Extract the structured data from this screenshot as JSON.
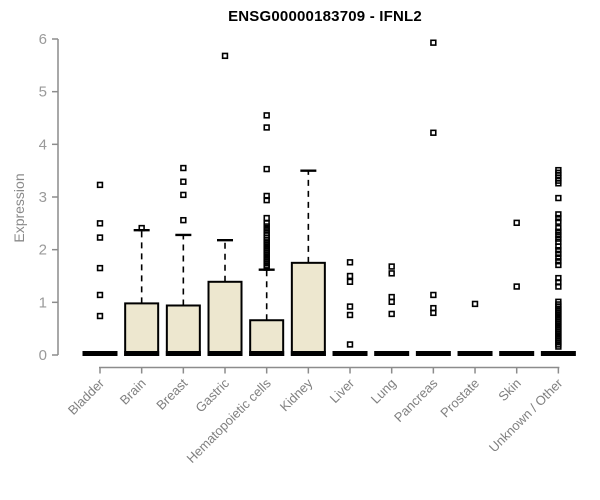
{
  "title": "ENSG00000183709 - IFNL2",
  "chart_data": {
    "type": "box",
    "title": "ENSG00000183709 - IFNL2",
    "ylabel": "Expression",
    "xlabel": "",
    "ylim": [
      0,
      6
    ],
    "y_ticks": [
      0,
      1,
      2,
      3,
      4,
      5,
      6
    ],
    "legend": "none",
    "grid": false,
    "colors": {
      "box_fill": "#EDE7CF",
      "box_border": "#000000",
      "median": "#000000",
      "whisker": "#000000",
      "outlier": "#000000",
      "axis": "#8c8c8c",
      "tick_label": "#9a9a9a",
      "category_label": "#808080",
      "title": "#000000"
    },
    "categories": [
      {
        "label": "Bladder",
        "median": 0,
        "q1": 0,
        "q3": 0,
        "whisker_low": 0,
        "whisker_high": 0,
        "outliers": [
          0.74,
          1.14,
          1.65,
          2.23,
          2.5,
          3.23
        ]
      },
      {
        "label": "Brain",
        "median": 0,
        "q1": 0,
        "q3": 0.98,
        "whisker_low": 0,
        "whisker_high": 2.37,
        "outliers": [
          2.41
        ]
      },
      {
        "label": "Breast",
        "median": 0,
        "q1": 0,
        "q3": 0.94,
        "whisker_low": 0,
        "whisker_high": 2.28,
        "outliers": [
          2.56,
          3.04,
          3.29,
          3.55
        ]
      },
      {
        "label": "Gastric",
        "median": 0,
        "q1": 0,
        "q3": 1.39,
        "whisker_low": 0,
        "whisker_high": 2.18,
        "outliers": [
          5.68
        ]
      },
      {
        "label": "Hematopoietic cells",
        "median": 0,
        "q1": 0,
        "q3": 0.66,
        "whisker_low": 0,
        "whisker_high": 1.62,
        "outliers": [
          1.66,
          1.7,
          1.74,
          1.78,
          1.82,
          1.86,
          1.9,
          1.94,
          1.98,
          2.02,
          2.06,
          2.1,
          2.14,
          2.18,
          2.22,
          2.27,
          2.32,
          2.38,
          2.44,
          2.5,
          2.6,
          2.94,
          3.02,
          3.53,
          4.32,
          4.55
        ]
      },
      {
        "label": "Kidney",
        "median": 0,
        "q1": 0,
        "q3": 1.75,
        "whisker_low": 0,
        "whisker_high": 3.5,
        "outliers": []
      },
      {
        "label": "Liver",
        "median": 0,
        "q1": 0,
        "q3": 0,
        "whisker_low": 0,
        "whisker_high": 0,
        "outliers": [
          0.2,
          0.76,
          0.92,
          1.39,
          1.5,
          1.76
        ]
      },
      {
        "label": "Lung",
        "median": 0,
        "q1": 0,
        "q3": 0,
        "whisker_low": 0,
        "whisker_high": 0,
        "outliers": [
          0.78,
          1.01,
          1.1,
          1.55,
          1.68
        ]
      },
      {
        "label": "Pancreas",
        "median": 0,
        "q1": 0,
        "q3": 0,
        "whisker_low": 0,
        "whisker_high": 0,
        "outliers": [
          0.8,
          0.89,
          1.14,
          4.22,
          5.93
        ]
      },
      {
        "label": "Prostate",
        "median": 0,
        "q1": 0,
        "q3": 0,
        "whisker_low": 0,
        "whisker_high": 0,
        "outliers": [
          0.97
        ]
      },
      {
        "label": "Skin",
        "median": 0,
        "q1": 0,
        "q3": 0,
        "whisker_low": 0,
        "whisker_high": 0,
        "outliers": [
          1.3,
          2.51
        ]
      },
      {
        "label": "Unknown / Other",
        "median": 0,
        "q1": 0,
        "q3": 0,
        "whisker_low": 0,
        "whisker_high": 0,
        "outliers": [
          0.16,
          0.2,
          0.24,
          0.28,
          0.32,
          0.36,
          0.4,
          0.44,
          0.48,
          0.52,
          0.56,
          0.6,
          0.64,
          0.68,
          0.72,
          0.76,
          0.8,
          0.84,
          0.88,
          0.92,
          0.96,
          1.01,
          1.3,
          1.38,
          1.46,
          1.71,
          1.78,
          1.85,
          1.92,
          1.99,
          2.06,
          2.15,
          2.21,
          2.28,
          2.34,
          2.41,
          2.53,
          2.6,
          2.67,
          2.98,
          3.26,
          3.31,
          3.36,
          3.41,
          3.46,
          3.51
        ]
      }
    ]
  }
}
